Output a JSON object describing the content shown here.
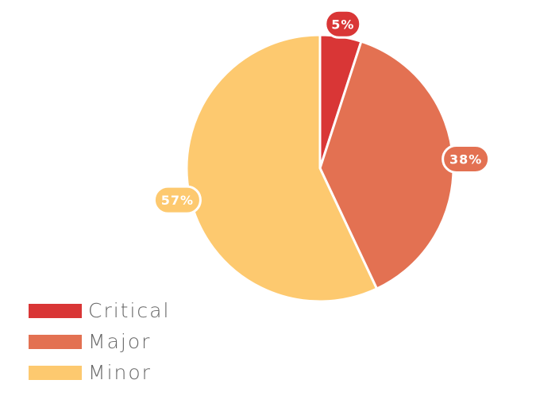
{
  "colors": {
    "critical": "#d93636",
    "major": "#e37152",
    "minor": "#fdc96f",
    "label_text": "#ffffff",
    "legend_text": "#666666"
  },
  "chart_data": {
    "type": "pie",
    "title": "",
    "categories": [
      "Critical",
      "Major",
      "Minor"
    ],
    "values": [
      5,
      38,
      57
    ],
    "value_labels": [
      "5%",
      "38%",
      "57%"
    ],
    "unit": "%",
    "legend_position": "bottom-left",
    "start_angle": "top (12 o'clock), clockwise"
  },
  "legend": {
    "items": [
      {
        "label": "Critical",
        "color": "#d93636"
      },
      {
        "label": "Major",
        "color": "#e37152"
      },
      {
        "label": "Minor",
        "color": "#fdc96f"
      }
    ]
  }
}
